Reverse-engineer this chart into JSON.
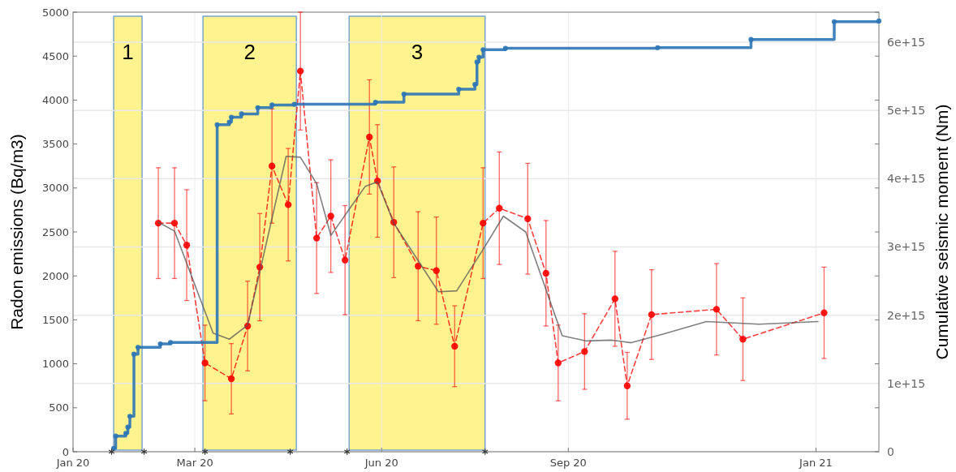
{
  "chart_data": {
    "type": "line",
    "ylabel": "Radon emissions (Bq/m3)",
    "y2label": "Cumulative seismic moment (Nm)",
    "xlim": [
      "2020-01-01",
      "2021-02-01"
    ],
    "xticks": [
      {
        "value": "2020-01-01",
        "label": "Jan 20"
      },
      {
        "value": "2020-03-01",
        "label": "Mar 20"
      },
      {
        "value": "2020-06-01",
        "label": "Jun 20"
      },
      {
        "value": "2020-09-01",
        "label": "Sep 20"
      },
      {
        "value": "2021-01-01",
        "label": "Jan 21"
      }
    ],
    "ylim": [
      0,
      5000
    ],
    "yticks": [
      0,
      500,
      1000,
      1500,
      2000,
      2500,
      3000,
      3500,
      4000,
      4500,
      5000
    ],
    "y2lim": [
      0,
      6440000000000000.0
    ],
    "y2ticks": [
      {
        "value": 0,
        "label": "0"
      },
      {
        "value": 1000000000000000.0,
        "label": "1e+15"
      },
      {
        "value": 2000000000000000.0,
        "label": "2e+15"
      },
      {
        "value": 3000000000000000.0,
        "label": "3e+15"
      },
      {
        "value": 4000000000000000.0,
        "label": "4e+15"
      },
      {
        "value": 5000000000000000.0,
        "label": "5e+15"
      },
      {
        "value": 6000000000000000.0,
        "label": "6e+15"
      }
    ],
    "grid": true,
    "bands": [
      {
        "axis": "x",
        "from": "2020-01-21",
        "to": "2020-02-04",
        "label": "1",
        "color": "#fff38f"
      },
      {
        "axis": "x",
        "from": "2020-03-05",
        "to": "2020-04-20",
        "label": "2",
        "color": "#fff38f"
      },
      {
        "axis": "x",
        "from": "2020-05-16",
        "to": "2020-07-22",
        "label": "3",
        "color": "#fff38f"
      }
    ],
    "series": [
      {
        "color": "#ff0000",
        "marker": "circle",
        "line_style": "dashed",
        "x": [
          "2020-02-12",
          "2020-02-20",
          "2020-02-26",
          "2020-03-06",
          "2020-03-19",
          "2020-03-27",
          "2020-04-02",
          "2020-04-08",
          "2020-04-16",
          "2020-04-22",
          "2020-04-30",
          "2020-05-07",
          "2020-05-14",
          "2020-05-26",
          "2020-05-30",
          "2020-06-07",
          "2020-06-19",
          "2020-06-28",
          "2020-07-07",
          "2020-07-21",
          "2020-07-29",
          "2020-08-12",
          "2020-08-21",
          "2020-08-27",
          "2020-09-09",
          "2020-09-24",
          "2020-09-30",
          "2020-10-12",
          "2020-11-13",
          "2020-11-26",
          "2021-01-05"
        ],
        "values": [
          2600,
          2600,
          2350,
          1010,
          830,
          1430,
          2100,
          3250,
          2810,
          4330,
          2430,
          2680,
          2180,
          3580,
          3080,
          2610,
          2110,
          2060,
          1200,
          2600,
          2770,
          2650,
          2030,
          1010,
          1140,
          1740,
          750,
          1560,
          1620,
          1280,
          1580
        ],
        "errors": [
          630,
          630,
          630,
          430,
          400,
          510,
          610,
          650,
          640,
          670,
          630,
          640,
          620,
          650,
          640,
          630,
          620,
          610,
          460,
          630,
          640,
          630,
          600,
          430,
          430,
          540,
          380,
          510,
          520,
          470,
          520
        ]
      },
      {
        "color": "#555555",
        "marker": "none",
        "line_style": "solid",
        "x": [
          "2020-02-12",
          "2020-02-20",
          "2020-03-10",
          "2020-03-18",
          "2020-03-27",
          "2020-04-15",
          "2020-04-22",
          "2020-04-30",
          "2020-05-07",
          "2020-05-24",
          "2020-05-30",
          "2020-06-07",
          "2020-06-29",
          "2020-07-08",
          "2020-07-21",
          "2020-07-31",
          "2020-08-11",
          "2020-08-29",
          "2020-09-10",
          "2020-09-22",
          "2020-10-02",
          "2020-10-18",
          "2020-11-08",
          "2020-12-04",
          "2021-01-02"
        ],
        "values": [
          2610,
          2510,
          1350,
          1280,
          1440,
          3360,
          3350,
          3050,
          2460,
          3020,
          3070,
          2600,
          1820,
          1830,
          2300,
          2680,
          2500,
          1320,
          1260,
          1270,
          1240,
          1340,
          1480,
          1450,
          1480
        ]
      },
      {
        "type": "step",
        "axis": "y2",
        "color": "#2e75b6",
        "marker": "circle",
        "line_style": "solid",
        "x": [
          "2020-01-21",
          "2020-01-22",
          "2020-01-27",
          "2020-01-28",
          "2020-01-29",
          "2020-01-31",
          "2020-02-02",
          "2020-02-13",
          "2020-02-18",
          "2020-03-12",
          "2020-03-18",
          "2020-03-19",
          "2020-03-24",
          "2020-04-01",
          "2020-04-08",
          "2020-04-19",
          "2020-05-29",
          "2020-06-12",
          "2020-07-09",
          "2020-07-17",
          "2020-07-18",
          "2020-07-19",
          "2020-07-21",
          "2020-08-01",
          "2020-10-15",
          "2020-11-30",
          "2021-01-10",
          "2021-02-01"
        ],
        "values": [
          50000000000000.0,
          230000000000000.0,
          270000000000000.0,
          360000000000000.0,
          520000000000000.0,
          1430000000000000.0,
          1530000000000000.0,
          1580000000000000.0,
          1600000000000000.0,
          4790000000000000.0,
          4830000000000000.0,
          4900000000000000.0,
          4950000000000000.0,
          5040000000000000.0,
          5080000000000000.0,
          5090000000000000.0,
          5120000000000000.0,
          5240000000000000.0,
          5310000000000000.0,
          5380000000000000.0,
          5710000000000000.0,
          5780000000000000.0,
          5890000000000000.0,
          5910000000000000.0,
          5920000000000000.0,
          6040000000000000.0,
          6300000000000000.0,
          6310000000000000.0
        ]
      },
      {
        "type": "scatter",
        "color": "#333333",
        "marker": "cross",
        "x": [
          "2020-01-20",
          "2020-02-05",
          "2020-03-06",
          "2020-04-17",
          "2020-05-15",
          "2020-07-22"
        ],
        "values": [
          0,
          0,
          0,
          0,
          0,
          0
        ]
      }
    ]
  }
}
